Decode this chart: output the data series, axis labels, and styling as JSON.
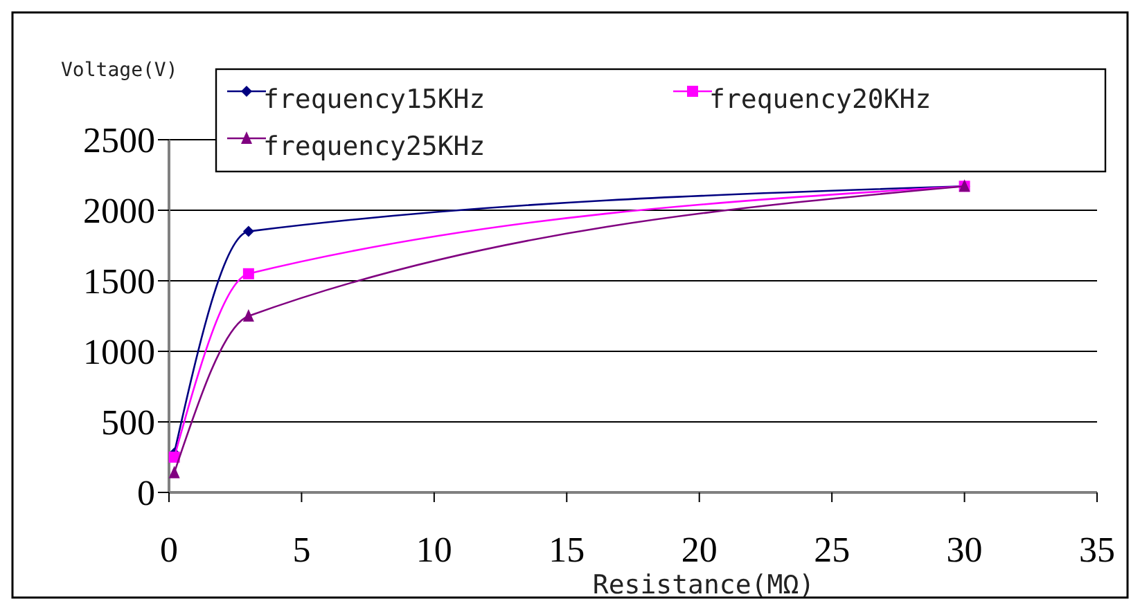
{
  "chart_data": {
    "type": "line",
    "xlabel": "Resistance(MΩ)",
    "ylabel": "Voltage(V)",
    "xlim": [
      0,
      35
    ],
    "xticks": [
      0,
      5,
      10,
      15,
      20,
      25,
      30,
      35
    ],
    "ylim": [
      0,
      2500
    ],
    "yticks": [
      0,
      500,
      1000,
      1500,
      2000,
      2500
    ],
    "grid": "y",
    "legend": "top",
    "series": [
      {
        "name": "frequency15KHz",
        "color": "#000080",
        "marker": "diamond",
        "x": [
          0.2,
          3,
          30
        ],
        "values": [
          280,
          1850,
          2170
        ]
      },
      {
        "name": "frequency20KHz",
        "color": "#ff00ff",
        "marker": "square",
        "x": [
          0.2,
          3,
          30
        ],
        "values": [
          250,
          1550,
          2170
        ]
      },
      {
        "name": "frequency25KHz",
        "color": "#800080",
        "marker": "triangle",
        "x": [
          0.2,
          3,
          30
        ],
        "values": [
          140,
          1250,
          2170
        ]
      }
    ]
  }
}
